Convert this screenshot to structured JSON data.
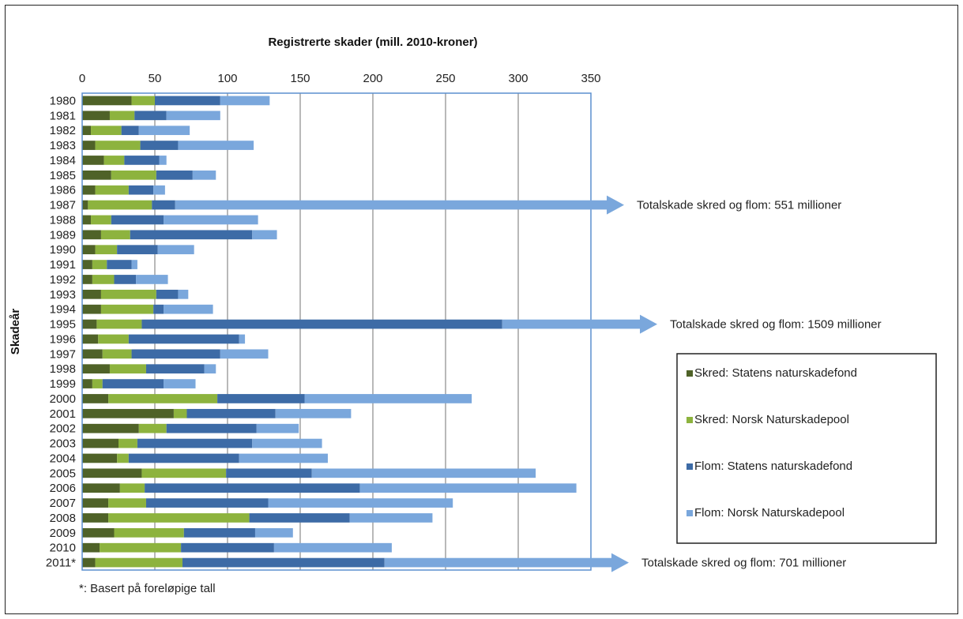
{
  "chart_data": {
    "type": "bar",
    "orientation": "horizontal",
    "stacked": true,
    "title": "Registrerte skader (mill. 2010-kroner)",
    "xlabel": "Registrerte skader (mill. 2010-kroner)",
    "ylabel": "Skadeår",
    "xlim": [
      0,
      350
    ],
    "xticks": [
      0,
      50,
      100,
      150,
      200,
      250,
      300,
      350
    ],
    "grid": true,
    "legend_position": "right",
    "categories": [
      "1980",
      "1981",
      "1982",
      "1983",
      "1984",
      "1985",
      "1986",
      "1987",
      "1988",
      "1989",
      "1990",
      "1991",
      "1992",
      "1993",
      "1994",
      "1995",
      "1996",
      "1997",
      "1998",
      "1999",
      "2000",
      "2001",
      "2002",
      "2003",
      "2004",
      "2005",
      "2006",
      "2007",
      "2008",
      "2009",
      "2010",
      "2011*"
    ],
    "series": [
      {
        "name": "Skred: Statens naturskadefond",
        "color": "#4f6228",
        "values": [
          34,
          19,
          6,
          9,
          15,
          20,
          9,
          4,
          6,
          13,
          9,
          7,
          7,
          13,
          13,
          10,
          11,
          14,
          19,
          7,
          18,
          63,
          39,
          25,
          24,
          41,
          26,
          18,
          18,
          22,
          12,
          9
        ]
      },
      {
        "name": "Skred: Norsk Naturskadepool",
        "color": "#8db33e",
        "values": [
          16,
          17,
          21,
          31,
          14,
          31,
          23,
          44,
          14,
          20,
          15,
          10,
          15,
          38,
          36,
          31,
          21,
          20,
          25,
          7,
          75,
          9,
          19,
          13,
          8,
          58,
          17,
          26,
          97,
          48,
          56,
          60
        ]
      },
      {
        "name": "Flom: Statens naturskadefond",
        "color": "#3d6ba6",
        "values": [
          45,
          22,
          12,
          26,
          24,
          25,
          17,
          16,
          36,
          84,
          28,
          17,
          15,
          15,
          7,
          248,
          76,
          61,
          40,
          42,
          60,
          61,
          62,
          79,
          76,
          59,
          148,
          84,
          69,
          49,
          64,
          139
        ]
      },
      {
        "name": "Flom: Norsk Naturskadepool",
        "color": "#7aa7dc",
        "values": [
          34,
          37,
          35,
          52,
          5,
          16,
          8,
          0,
          65,
          17,
          25,
          4,
          22,
          7,
          34,
          0,
          4,
          33,
          8,
          22,
          115,
          52,
          29,
          48,
          61,
          154,
          149,
          127,
          57,
          26,
          81,
          0
        ]
      }
    ],
    "annotations": [
      {
        "category": "1987",
        "text": "Totalskade skred og flom: 551 millioner"
      },
      {
        "category": "1995",
        "text": "Totalskade skred og flom: 1509 millioner"
      },
      {
        "category": "2011*",
        "text": "Totalskade skred og flom: 701 millioner"
      }
    ],
    "footnote": "*: Basert på foreløpige tall"
  }
}
